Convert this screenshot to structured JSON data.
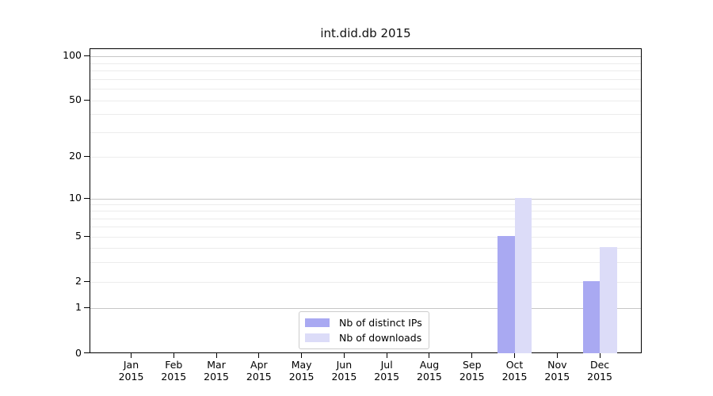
{
  "chart_data": {
    "type": "bar",
    "title": "int.did.db 2015",
    "year_label": "2015",
    "months": [
      "Jan",
      "Feb",
      "Mar",
      "Apr",
      "May",
      "Jun",
      "Jul",
      "Aug",
      "Sep",
      "Oct",
      "Nov",
      "Dec"
    ],
    "series": [
      {
        "name": "Nb of distinct IPs",
        "color": "#a9a9f2",
        "values": [
          0,
          0,
          0,
          0,
          0,
          0,
          0,
          0,
          0,
          5,
          0,
          2
        ]
      },
      {
        "name": "Nb of downloads",
        "color": "#dcdcf8",
        "values": [
          0,
          0,
          0,
          0,
          0,
          0,
          0,
          0,
          0,
          10,
          0,
          4
        ]
      }
    ],
    "y_axis": {
      "scale": "symlog",
      "tick_values": [
        0,
        1,
        2,
        5,
        10,
        20,
        50,
        100
      ],
      "tick_labels": [
        "0",
        "1",
        "2",
        "5",
        "10",
        "20",
        "50",
        "100"
      ],
      "major_gridlines": [
        1,
        10,
        100
      ],
      "minor_gridlines": [
        2,
        3,
        4,
        5,
        6,
        7,
        8,
        9,
        20,
        30,
        40,
        50,
        60,
        70,
        80,
        90
      ],
      "ylim": [
        0,
        112
      ]
    },
    "legend_position": "lower center",
    "colors": {
      "grid_major": "#c6c6c6",
      "grid_minor": "#ececec",
      "spine": "#000000"
    }
  }
}
